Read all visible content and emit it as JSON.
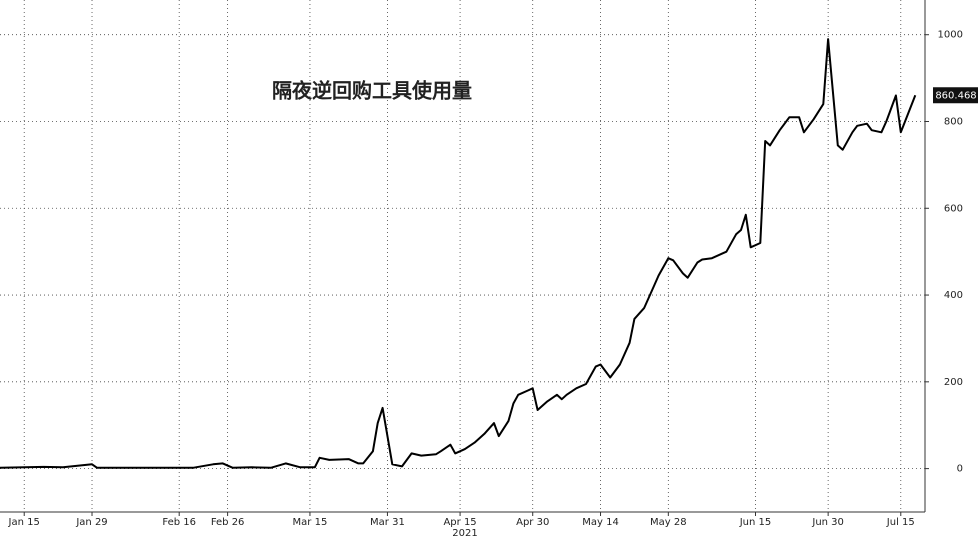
{
  "chart_data": {
    "type": "line",
    "title": "隔夜逆回购工具使用量",
    "xlabel": "2021",
    "x": [
      "2021-01-10",
      "2021-01-19",
      "2021-01-23",
      "2021-01-29",
      "2021-01-30",
      "2021-02-19",
      "2021-02-23",
      "2021-02-25",
      "2021-02-27",
      "2021-03-03",
      "2021-03-07",
      "2021-03-10",
      "2021-03-13",
      "2021-03-16",
      "2021-03-17",
      "2021-03-19",
      "2021-03-23",
      "2021-03-25",
      "2021-03-26",
      "2021-03-28",
      "2021-03-29",
      "2021-03-30",
      "2021-04-01",
      "2021-04-03",
      "2021-04-05",
      "2021-04-07",
      "2021-04-10",
      "2021-04-11",
      "2021-04-13",
      "2021-04-14",
      "2021-04-16",
      "2021-04-18",
      "2021-04-20",
      "2021-04-22",
      "2021-04-23",
      "2021-04-25",
      "2021-04-26",
      "2021-04-27",
      "2021-04-29",
      "2021-04-30",
      "2021-05-01",
      "2021-05-03",
      "2021-05-05",
      "2021-05-06",
      "2021-05-07",
      "2021-05-09",
      "2021-05-11",
      "2021-05-13",
      "2021-05-14",
      "2021-05-16",
      "2021-05-18",
      "2021-05-20",
      "2021-05-21",
      "2021-05-23",
      "2021-05-25",
      "2021-05-26",
      "2021-05-28",
      "2021-05-29",
      "2021-05-31",
      "2021-06-01",
      "2021-06-03",
      "2021-06-04",
      "2021-06-06",
      "2021-06-08",
      "2021-06-09",
      "2021-06-11",
      "2021-06-12",
      "2021-06-13",
      "2021-06-14",
      "2021-06-16",
      "2021-06-17",
      "2021-06-18",
      "2021-06-20",
      "2021-06-22",
      "2021-06-24",
      "2021-06-25",
      "2021-06-27",
      "2021-06-29",
      "2021-06-30",
      "2021-07-02",
      "2021-07-03",
      "2021-07-05",
      "2021-07-06",
      "2021-07-08",
      "2021-07-09",
      "2021-07-11",
      "2021-07-12",
      "2021-07-14",
      "2021-07-15",
      "2021-07-18"
    ],
    "values": [
      2,
      4,
      3,
      10,
      2,
      2,
      10,
      12,
      2,
      3,
      2,
      12,
      3,
      3,
      25,
      20,
      22,
      12,
      12,
      40,
      105,
      140,
      10,
      5,
      35,
      30,
      33,
      40,
      55,
      35,
      45,
      60,
      80,
      105,
      75,
      110,
      150,
      170,
      180,
      185,
      135,
      155,
      170,
      160,
      170,
      185,
      195,
      235,
      240,
      210,
      240,
      290,
      345,
      370,
      420,
      445,
      485,
      480,
      450,
      440,
      475,
      482,
      485,
      495,
      500,
      540,
      550,
      585,
      510,
      520,
      755,
      745,
      780,
      810,
      810,
      775,
      805,
      840,
      990,
      745,
      735,
      775,
      790,
      795,
      780,
      775,
      800,
      860,
      775,
      860.468
    ],
    "color": "#000000",
    "xlim": [
      "2021-01-10",
      "2021-07-20"
    ],
    "xticks": [
      {
        "value": "2021-01-15",
        "label": "Jan 15"
      },
      {
        "value": "2021-01-29",
        "label": "Jan 29"
      },
      {
        "value": "2021-02-16",
        "label": "Feb 16"
      },
      {
        "value": "2021-02-26",
        "label": "Feb 26"
      },
      {
        "value": "2021-03-15",
        "label": "Mar 15"
      },
      {
        "value": "2021-03-31",
        "label": "Mar 31"
      },
      {
        "value": "2021-04-15",
        "label": "Apr 15"
      },
      {
        "value": "2021-04-30",
        "label": "Apr 30"
      },
      {
        "value": "2021-05-14",
        "label": "May 14"
      },
      {
        "value": "2021-05-28",
        "label": "May 28"
      },
      {
        "value": "2021-06-15",
        "label": "Jun 15"
      },
      {
        "value": "2021-06-30",
        "label": "Jun 30"
      },
      {
        "value": "2021-07-15",
        "label": "Jul 15"
      }
    ],
    "ylim": [
      -100,
      1080
    ],
    "yticks": [
      0,
      200,
      400,
      600,
      800,
      1000
    ],
    "grid": true
  }
}
